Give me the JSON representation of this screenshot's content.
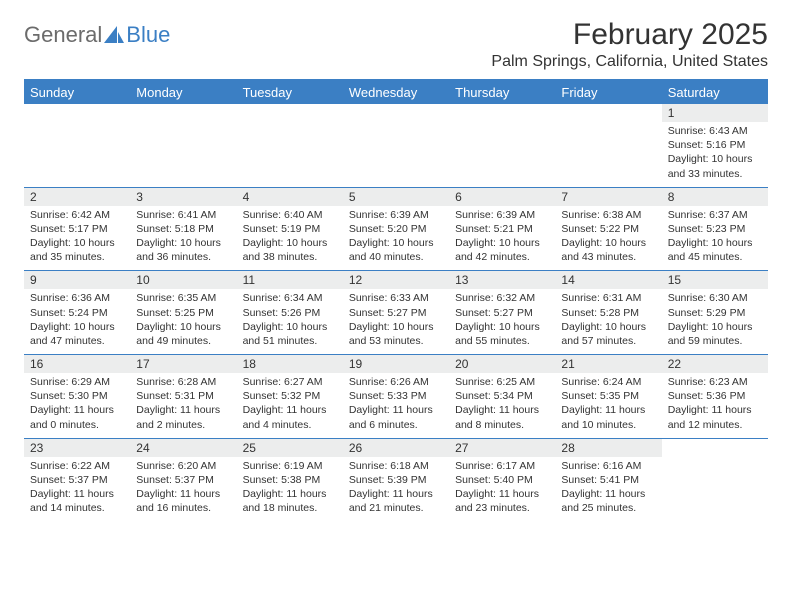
{
  "logo": {
    "part1": "General",
    "part2": "Blue"
  },
  "title": "February 2025",
  "location": "Palm Springs, California, United States",
  "colors": {
    "brand_blue": "#3b7fc4",
    "gray_band": "#eceded",
    "text": "#333333",
    "logo_gray": "#6b6b6b",
    "background": "#ffffff"
  },
  "day_headers": [
    "Sunday",
    "Monday",
    "Tuesday",
    "Wednesday",
    "Thursday",
    "Friday",
    "Saturday"
  ],
  "weeks": [
    [
      null,
      null,
      null,
      null,
      null,
      null,
      {
        "n": "1",
        "sr": "6:43 AM",
        "ss": "5:16 PM",
        "dl": "10 hours and 33 minutes."
      }
    ],
    [
      {
        "n": "2",
        "sr": "6:42 AM",
        "ss": "5:17 PM",
        "dl": "10 hours and 35 minutes."
      },
      {
        "n": "3",
        "sr": "6:41 AM",
        "ss": "5:18 PM",
        "dl": "10 hours and 36 minutes."
      },
      {
        "n": "4",
        "sr": "6:40 AM",
        "ss": "5:19 PM",
        "dl": "10 hours and 38 minutes."
      },
      {
        "n": "5",
        "sr": "6:39 AM",
        "ss": "5:20 PM",
        "dl": "10 hours and 40 minutes."
      },
      {
        "n": "6",
        "sr": "6:39 AM",
        "ss": "5:21 PM",
        "dl": "10 hours and 42 minutes."
      },
      {
        "n": "7",
        "sr": "6:38 AM",
        "ss": "5:22 PM",
        "dl": "10 hours and 43 minutes."
      },
      {
        "n": "8",
        "sr": "6:37 AM",
        "ss": "5:23 PM",
        "dl": "10 hours and 45 minutes."
      }
    ],
    [
      {
        "n": "9",
        "sr": "6:36 AM",
        "ss": "5:24 PM",
        "dl": "10 hours and 47 minutes."
      },
      {
        "n": "10",
        "sr": "6:35 AM",
        "ss": "5:25 PM",
        "dl": "10 hours and 49 minutes."
      },
      {
        "n": "11",
        "sr": "6:34 AM",
        "ss": "5:26 PM",
        "dl": "10 hours and 51 minutes."
      },
      {
        "n": "12",
        "sr": "6:33 AM",
        "ss": "5:27 PM",
        "dl": "10 hours and 53 minutes."
      },
      {
        "n": "13",
        "sr": "6:32 AM",
        "ss": "5:27 PM",
        "dl": "10 hours and 55 minutes."
      },
      {
        "n": "14",
        "sr": "6:31 AM",
        "ss": "5:28 PM",
        "dl": "10 hours and 57 minutes."
      },
      {
        "n": "15",
        "sr": "6:30 AM",
        "ss": "5:29 PM",
        "dl": "10 hours and 59 minutes."
      }
    ],
    [
      {
        "n": "16",
        "sr": "6:29 AM",
        "ss": "5:30 PM",
        "dl": "11 hours and 0 minutes."
      },
      {
        "n": "17",
        "sr": "6:28 AM",
        "ss": "5:31 PM",
        "dl": "11 hours and 2 minutes."
      },
      {
        "n": "18",
        "sr": "6:27 AM",
        "ss": "5:32 PM",
        "dl": "11 hours and 4 minutes."
      },
      {
        "n": "19",
        "sr": "6:26 AM",
        "ss": "5:33 PM",
        "dl": "11 hours and 6 minutes."
      },
      {
        "n": "20",
        "sr": "6:25 AM",
        "ss": "5:34 PM",
        "dl": "11 hours and 8 minutes."
      },
      {
        "n": "21",
        "sr": "6:24 AM",
        "ss": "5:35 PM",
        "dl": "11 hours and 10 minutes."
      },
      {
        "n": "22",
        "sr": "6:23 AM",
        "ss": "5:36 PM",
        "dl": "11 hours and 12 minutes."
      }
    ],
    [
      {
        "n": "23",
        "sr": "6:22 AM",
        "ss": "5:37 PM",
        "dl": "11 hours and 14 minutes."
      },
      {
        "n": "24",
        "sr": "6:20 AM",
        "ss": "5:37 PM",
        "dl": "11 hours and 16 minutes."
      },
      {
        "n": "25",
        "sr": "6:19 AM",
        "ss": "5:38 PM",
        "dl": "11 hours and 18 minutes."
      },
      {
        "n": "26",
        "sr": "6:18 AM",
        "ss": "5:39 PM",
        "dl": "11 hours and 21 minutes."
      },
      {
        "n": "27",
        "sr": "6:17 AM",
        "ss": "5:40 PM",
        "dl": "11 hours and 23 minutes."
      },
      {
        "n": "28",
        "sr": "6:16 AM",
        "ss": "5:41 PM",
        "dl": "11 hours and 25 minutes."
      },
      null
    ]
  ],
  "labels": {
    "sunrise": "Sunrise:",
    "sunset": "Sunset:",
    "daylight": "Daylight:"
  }
}
